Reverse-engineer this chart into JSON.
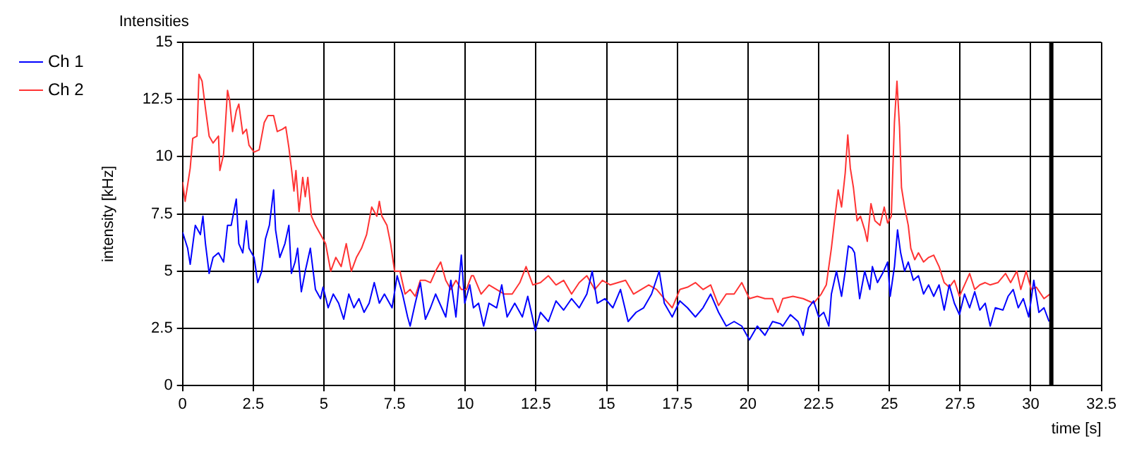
{
  "chart_data": {
    "type": "line",
    "title": "Intensities",
    "xlabel": "time [s]",
    "ylabel": "intensity [kHz]",
    "xlim": [
      0,
      32.5
    ],
    "xticks": [
      0,
      2.5,
      5,
      7.5,
      10,
      12.5,
      15,
      17.5,
      20,
      22.5,
      25,
      27.5,
      30,
      32.5
    ],
    "ylim": [
      0,
      15
    ],
    "yticks": [
      0,
      2.5,
      5,
      7.5,
      10,
      12.5,
      15
    ],
    "grid": true,
    "legend": "top left",
    "marker": "none",
    "line_style": "solid",
    "ref_lines": [
      {
        "axis": "x",
        "value": 30.73,
        "color": "#000000"
      }
    ],
    "series": [
      {
        "name": "Ch 1",
        "color": "#0000ff",
        "x": [
          0,
          0.18,
          0.27,
          0.45,
          0.63,
          0.72,
          0.81,
          0.94,
          1.08,
          1.27,
          1.45,
          1.59,
          1.72,
          1.9,
          1.99,
          2.13,
          2.26,
          2.35,
          2.53,
          2.66,
          2.8,
          2.93,
          3.07,
          3.22,
          3.29,
          3.44,
          3.62,
          3.76,
          3.85,
          3.98,
          4.07,
          4.2,
          4.34,
          4.52,
          4.7,
          4.88,
          4.97,
          5.15,
          5.33,
          5.52,
          5.7,
          5.88,
          6.06,
          6.24,
          6.42,
          6.6,
          6.78,
          6.96,
          7.14,
          7.41,
          7.59,
          7.78,
          7.96,
          8.05,
          8.23,
          8.41,
          8.59,
          8.77,
          8.95,
          9.13,
          9.31,
          9.49,
          9.67,
          9.86,
          9.98,
          10.16,
          10.29,
          10.47,
          10.65,
          10.84,
          11.11,
          11.29,
          11.48,
          11.75,
          12.02,
          12.21,
          12.48,
          12.66,
          12.94,
          13.21,
          13.48,
          13.76,
          14.03,
          14.3,
          14.49,
          14.67,
          14.94,
          15.22,
          15.49,
          15.76,
          16.04,
          16.31,
          16.59,
          16.86,
          17.04,
          17.32,
          17.59,
          17.86,
          18.14,
          18.41,
          18.68,
          18.96,
          19.23,
          19.51,
          19.78,
          20.05,
          20.33,
          20.6,
          20.87,
          21.15,
          21.23,
          21.5,
          21.77,
          21.95,
          22.14,
          22.32,
          22.5,
          22.68,
          22.86,
          22.95,
          23.13,
          23.31,
          23.44,
          23.55,
          23.68,
          23.77,
          23.95,
          24.13,
          24.31,
          24.4,
          24.58,
          24.76,
          24.94,
          25.03,
          25.18,
          25.29,
          25.4,
          25.54,
          25.67,
          25.85,
          26.03,
          26.21,
          26.39,
          26.57,
          26.76,
          26.94,
          27.12,
          27.3,
          27.48,
          27.66,
          27.84,
          28.02,
          28.2,
          28.39,
          28.57,
          28.75,
          29.02,
          29.2,
          29.38,
          29.56,
          29.74,
          29.93,
          30.11,
          30.29,
          30.47,
          30.65
        ],
        "values": [
          6.7,
          6,
          5.3,
          7,
          6.6,
          7.4,
          6.2,
          4.9,
          5.6,
          5.8,
          5.4,
          7,
          7,
          8.15,
          6.2,
          5.8,
          7.2,
          6,
          5.6,
          4.5,
          5,
          6.4,
          7,
          8.55,
          6.8,
          5.6,
          6.2,
          7,
          4.9,
          5.4,
          6,
          4.1,
          5,
          6,
          4.2,
          3.8,
          4.3,
          3.4,
          4,
          3.6,
          2.9,
          4,
          3.4,
          3.8,
          3.2,
          3.6,
          4.5,
          3.6,
          4,
          3.4,
          4.8,
          4,
          3,
          2.6,
          3.6,
          4.5,
          2.9,
          3.4,
          4,
          3.5,
          3,
          4.6,
          3,
          5.7,
          3.6,
          4.4,
          3.4,
          3.6,
          2.6,
          3.6,
          3.4,
          4.4,
          3,
          3.6,
          3,
          3.9,
          2.4,
          3.2,
          2.8,
          3.7,
          3.3,
          3.8,
          3.4,
          4,
          5,
          3.6,
          3.8,
          3.4,
          4.2,
          2.8,
          3.2,
          3.4,
          4,
          5,
          3.6,
          3,
          3.7,
          3.4,
          3,
          3.4,
          4,
          3.2,
          2.6,
          2.8,
          2.6,
          2,
          2.6,
          2.2,
          2.8,
          2.7,
          2.6,
          3.1,
          2.8,
          2.2,
          3.4,
          3.7,
          3,
          3.2,
          2.6,
          4,
          5,
          3.9,
          5,
          6.1,
          6,
          5.8,
          3.8,
          5,
          4.2,
          5.2,
          4.5,
          4.9,
          5.4,
          3.9,
          5.2,
          6.8,
          5.8,
          5,
          5.4,
          4.6,
          4.8,
          4,
          4.4,
          3.9,
          4.4,
          3.3,
          4.4,
          3.6,
          3.1,
          4,
          3.4,
          4.1,
          3.3,
          3.6,
          2.6,
          3.4,
          3.3,
          3.9,
          4.2,
          3.4,
          3.8,
          3,
          4.6,
          3.2,
          3.4,
          2.8
        ]
      },
      {
        "name": "Ch 2",
        "color": "#ff3333",
        "x": [
          0,
          0.09,
          0.27,
          0.36,
          0.51,
          0.58,
          0.69,
          0.81,
          0.94,
          1.08,
          1.27,
          1.32,
          1.45,
          1.59,
          1.66,
          1.77,
          1.9,
          1.99,
          2.13,
          2.26,
          2.35,
          2.53,
          2.71,
          2.89,
          3.02,
          3.22,
          3.35,
          3.53,
          3.65,
          3.76,
          3.85,
          3.94,
          4.01,
          4.12,
          4.25,
          4.34,
          4.43,
          4.56,
          4.7,
          4.88,
          5.06,
          5.24,
          5.42,
          5.61,
          5.79,
          5.97,
          6.15,
          6.33,
          6.51,
          6.69,
          6.87,
          6.96,
          7.05,
          7.23,
          7.36,
          7.5,
          7.69,
          7.87,
          8.05,
          8.23,
          8.41,
          8.59,
          8.77,
          8.95,
          9.13,
          9.31,
          9.49,
          9.67,
          9.86,
          10.04,
          10.22,
          10.29,
          10.56,
          10.84,
          11.11,
          11.38,
          11.66,
          11.93,
          12.15,
          12.39,
          12.66,
          12.94,
          13.21,
          13.48,
          13.76,
          14.03,
          14.3,
          14.58,
          14.85,
          15.13,
          15.4,
          15.67,
          15.95,
          16.22,
          16.49,
          16.77,
          17.04,
          17.32,
          17.59,
          17.86,
          18.14,
          18.41,
          18.68,
          18.96,
          19.23,
          19.51,
          19.78,
          20.05,
          20.33,
          20.6,
          20.87,
          21.06,
          21.23,
          21.59,
          21.95,
          22.32,
          22.59,
          22.77,
          22.95,
          23.08,
          23.19,
          23.31,
          23.44,
          23.53,
          23.62,
          23.73,
          23.86,
          23.98,
          24.13,
          24.22,
          24.35,
          24.49,
          24.67,
          24.82,
          24.94,
          25.07,
          25.18,
          25.27,
          25.36,
          25.43,
          25.54,
          25.67,
          25.76,
          25.9,
          26.03,
          26.21,
          26.39,
          26.57,
          26.76,
          26.94,
          27.12,
          27.3,
          27.48,
          27.66,
          27.84,
          28.02,
          28.2,
          28.39,
          28.57,
          28.84,
          29.11,
          29.29,
          29.51,
          29.65,
          29.84,
          30.02,
          30.2,
          30.47,
          30.74
        ],
        "values": [
          8.9,
          8.05,
          9.5,
          10.8,
          10.9,
          13.6,
          13.3,
          12.1,
          10.9,
          10.6,
          10.9,
          9.4,
          10.1,
          12.9,
          12.5,
          11.1,
          12,
          12.3,
          11,
          11.2,
          10.5,
          10.2,
          10.3,
          11.5,
          11.8,
          11.8,
          11.1,
          11.2,
          11.3,
          10.4,
          9.5,
          8.5,
          9.4,
          7.6,
          9.1,
          8.25,
          9.1,
          7.4,
          7,
          6.6,
          6.2,
          5,
          5.6,
          5.2,
          6.2,
          5,
          5.6,
          6,
          6.6,
          7.8,
          7.4,
          8.05,
          7.4,
          7,
          6.2,
          5,
          5,
          4,
          4.2,
          3.9,
          4.6,
          4.6,
          4.5,
          5,
          5.4,
          4.6,
          4.2,
          4.6,
          4.2,
          4.2,
          4.8,
          4.8,
          4,
          4.4,
          4.2,
          4,
          4,
          4.5,
          5.2,
          4.4,
          4.5,
          4.8,
          4.4,
          4.6,
          4,
          4.5,
          4.8,
          4.2,
          4.6,
          4.4,
          4.5,
          4.6,
          4,
          4.2,
          4.4,
          4.2,
          3.8,
          3.4,
          4.2,
          4.3,
          4.5,
          4.2,
          4.4,
          3.5,
          4,
          4,
          4.5,
          3.8,
          3.9,
          3.8,
          3.8,
          3.2,
          3.8,
          3.9,
          3.8,
          3.6,
          4,
          4.4,
          6,
          7.4,
          8.55,
          7.8,
          9.3,
          10.95,
          9.5,
          8.65,
          7.2,
          7.4,
          6.8,
          6.3,
          7.95,
          7.2,
          7,
          7.8,
          7.1,
          7.4,
          11.5,
          13.3,
          11.3,
          8.65,
          7.8,
          7,
          6,
          5.5,
          5.8,
          5.4,
          5.6,
          5.7,
          5.2,
          4.5,
          4.3,
          4.6,
          3.9,
          4.4,
          4.9,
          4.2,
          4.4,
          4.5,
          4.4,
          4.5,
          4.9,
          4.5,
          5,
          4.2,
          5,
          4.2,
          4.3,
          3.8,
          4.05
        ]
      }
    ]
  }
}
